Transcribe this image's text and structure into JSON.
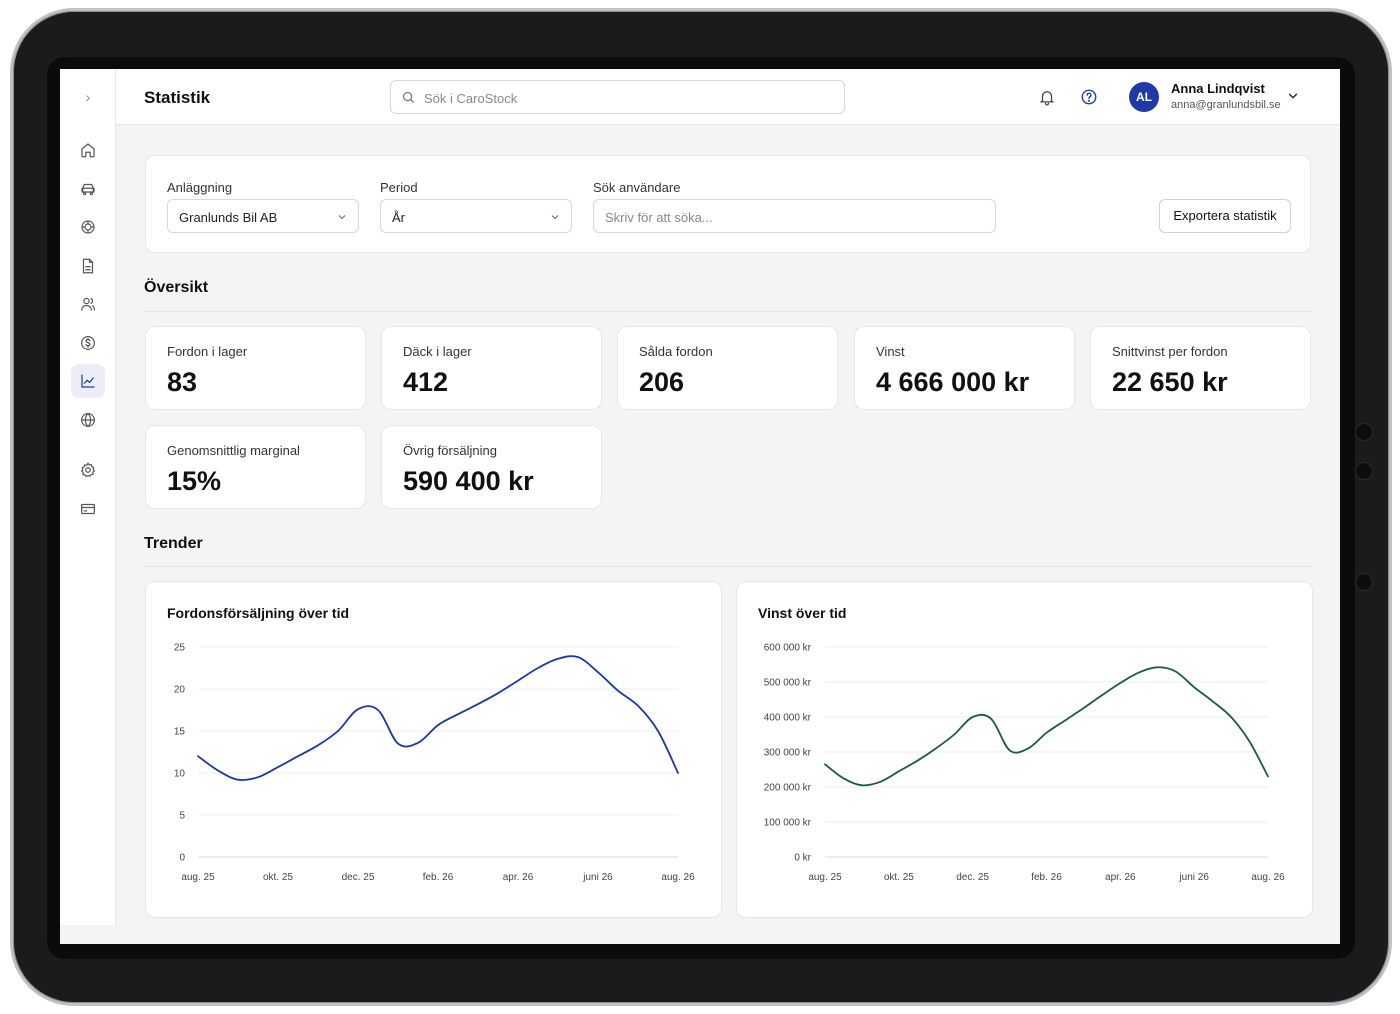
{
  "header": {
    "title": "Statistik",
    "search_placeholder": "Sök i CaroStock",
    "user": {
      "initials": "AL",
      "name": "Anna Lindqvist",
      "email": "anna@granlundsbil.se"
    }
  },
  "sidebar": {
    "items": [
      "home-icon",
      "car-icon",
      "tire-icon",
      "document-icon",
      "users-icon",
      "dollar-icon",
      "chart-icon",
      "globe-icon",
      "settings-icon",
      "card-icon"
    ],
    "active": "chart-icon"
  },
  "filters": {
    "facility_label": "Anläggning",
    "facility_value": "Granlunds Bil AB",
    "period_label": "Period",
    "period_value": "År",
    "user_search_label": "Sök användare",
    "user_search_placeholder": "Skriv för att söka...",
    "export_label": "Exportera statistik"
  },
  "overview": {
    "title": "Översikt",
    "cards": [
      {
        "label": "Fordon i lager",
        "value": "83"
      },
      {
        "label": "Däck i lager",
        "value": "412"
      },
      {
        "label": "Sålda fordon",
        "value": "206"
      },
      {
        "label": "Vinst",
        "value": "4 666 000 kr"
      },
      {
        "label": "Snittvinst per fordon",
        "value": "22 650 kr"
      },
      {
        "label": "Genomsnittlig marginal",
        "value": "15%"
      },
      {
        "label": "Övrig försäljning",
        "value": "590 400 kr"
      }
    ]
  },
  "trends": {
    "title": "Trender"
  },
  "colors": {
    "accent": "#1f3aa8",
    "sales_line": "#1c37a6",
    "profit_line": "#1e5a3e"
  },
  "chart_data": [
    {
      "type": "line",
      "title": "Fordonsförsäljning över tid",
      "x_ticks": [
        "aug. 25",
        "okt. 25",
        "dec. 25",
        "feb. 26",
        "apr. 26",
        "juni 26",
        "aug. 26"
      ],
      "y_ticks": [
        "0",
        "5",
        "10",
        "15",
        "20",
        "25"
      ],
      "ylim": [
        0,
        25
      ],
      "xlim": [
        0,
        12
      ],
      "x": [
        0,
        0.5,
        1,
        1.5,
        2,
        2.5,
        3,
        3.5,
        4,
        4.5,
        5,
        5.5,
        6,
        6.5,
        7,
        7.5,
        8,
        8.5,
        9,
        9.5,
        10,
        10.5,
        11,
        11.5,
        12
      ],
      "values": [
        12,
        10.3,
        9.2,
        9.5,
        10.7,
        12,
        13.3,
        15,
        17.6,
        17.5,
        13.5,
        13.6,
        15.7,
        17,
        18.2,
        19.5,
        21,
        22.5,
        23.6,
        23.8,
        22,
        19.8,
        18,
        15,
        10
      ],
      "grid": true,
      "legend": "none"
    },
    {
      "type": "line",
      "title": "Vinst över tid",
      "x_ticks": [
        "aug. 25",
        "okt. 25",
        "dec. 25",
        "feb. 26",
        "apr. 26",
        "juni 26",
        "aug. 26"
      ],
      "y_ticks": [
        "0 kr",
        "100 000 kr",
        "200 000 kr",
        "300 000 kr",
        "400 000 kr",
        "500 000 kr",
        "600 000 kr"
      ],
      "ylim": [
        0,
        600000
      ],
      "xlim": [
        0,
        12
      ],
      "x": [
        0,
        0.5,
        1,
        1.5,
        2,
        2.5,
        3,
        3.5,
        4,
        4.5,
        5,
        5.5,
        6,
        6.5,
        7,
        7.5,
        8,
        8.5,
        9,
        9.5,
        10,
        10.5,
        11,
        11.5,
        12
      ],
      "values": [
        265000,
        225000,
        205000,
        215000,
        245000,
        275000,
        310000,
        350000,
        400000,
        395000,
        305000,
        310000,
        355000,
        390000,
        425000,
        462000,
        497000,
        527000,
        542000,
        530000,
        485000,
        445000,
        400000,
        330000,
        230000
      ],
      "grid": true,
      "legend": "none"
    }
  ]
}
